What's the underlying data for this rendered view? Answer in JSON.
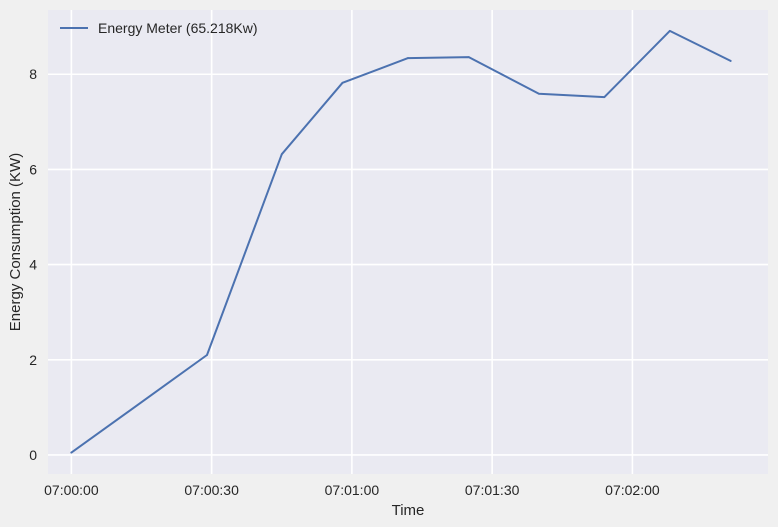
{
  "chart_data": {
    "type": "line",
    "title": "",
    "xlabel": "Time",
    "ylabel": "Energy Consumption (KW)",
    "x": [
      "07:00:00",
      "07:00:29",
      "07:00:45",
      "07:00:58",
      "07:01:12",
      "07:01:25",
      "07:01:40",
      "07:01:54",
      "07:02:08",
      "07:02:21"
    ],
    "xlim": [
      "06:59:55",
      "07:02:29"
    ],
    "xticks": [
      "07:00:00",
      "07:00:30",
      "07:01:00",
      "07:01:30",
      "07:02:00"
    ],
    "ylim": [
      -0.4,
      9.35
    ],
    "yticks": [
      0,
      2,
      4,
      6,
      8
    ],
    "grid": true,
    "legend_position": "top-left",
    "series": [
      {
        "name": "Energy Meter (65.218Kw)",
        "color": "#4c72b0",
        "values": [
          0.05,
          2.1,
          6.32,
          7.82,
          8.34,
          8.36,
          7.59,
          7.52,
          8.91,
          8.28
        ]
      }
    ]
  }
}
